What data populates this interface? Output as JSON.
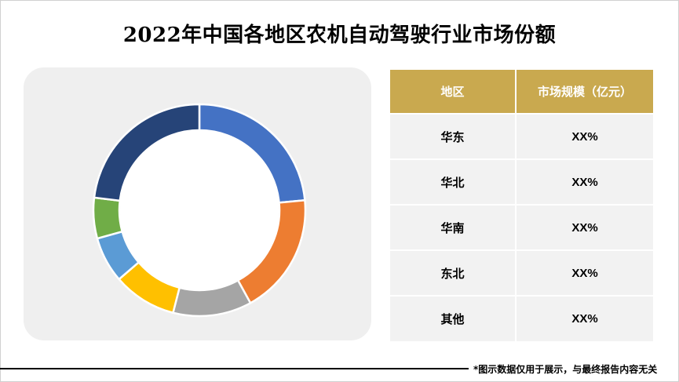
{
  "title": "2022年中国各地区农机自动驾驶行业市场份额",
  "chart_data": {
    "type": "pie",
    "style": "donut",
    "legend": "none",
    "values": [
      23.5,
      18.5,
      12.0,
      9.7,
      7.0,
      6.2,
      23.1
    ],
    "colors": [
      "#4472c4",
      "#ed7d31",
      "#a5a5a5",
      "#ffc000",
      "#5b9bd5",
      "#70ad47",
      "#264478"
    ]
  },
  "table": {
    "headers": [
      "地区",
      "市场规模（亿元）"
    ],
    "rows": [
      [
        "华东",
        "XX%"
      ],
      [
        "华北",
        "XX%"
      ],
      [
        "华南",
        "XX%"
      ],
      [
        "东北",
        "XX%"
      ],
      [
        "其他",
        "XX%"
      ]
    ]
  },
  "footnote": "*图示数据仅用于展示，与最终报告内容无关"
}
